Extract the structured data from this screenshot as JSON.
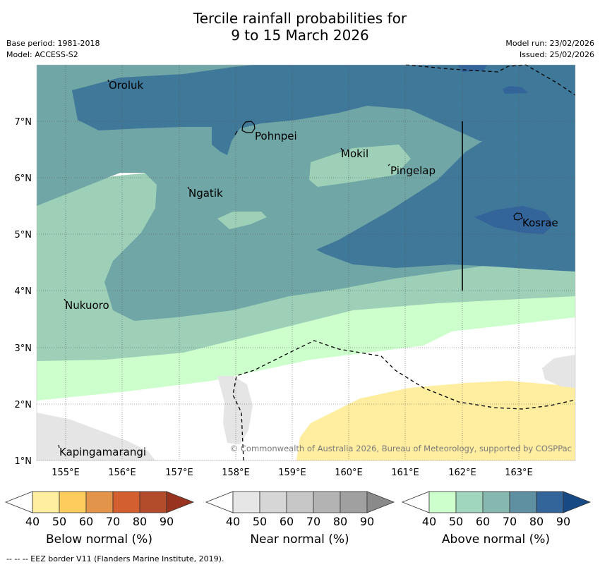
{
  "title": {
    "line1": "Tercile rainfall probabilities for",
    "line2": "9 to 15 March 2026"
  },
  "meta": {
    "base_period": "Base period: 1981-2018",
    "model": "Model: ACCESS-S2",
    "model_run": "Model run: 23/02/2026",
    "issued": "Issued: 25/02/2026"
  },
  "map": {
    "lat_labels": [
      "1°N",
      "2°N",
      "3°N",
      "4°N",
      "5°N",
      "6°N",
      "7°N"
    ],
    "lon_labels": [
      "155°E",
      "156°E",
      "157°E",
      "158°E",
      "159°E",
      "160°E",
      "161°E",
      "162°E",
      "163°E"
    ],
    "places": [
      {
        "name": "Oroluk"
      },
      {
        "name": "Pohnpei"
      },
      {
        "name": "Mokil"
      },
      {
        "name": "Pingelap"
      },
      {
        "name": "Ngatik"
      },
      {
        "name": "Kosrae"
      },
      {
        "name": "Nukuoro"
      },
      {
        "name": "Kapingamarangi"
      }
    ],
    "copyright": "© Commonwealth of Australia 2026, Bureau of Meteorology, supported by COSPPac"
  },
  "legend": {
    "ticks": [
      "40",
      "50",
      "60",
      "70",
      "80",
      "90"
    ],
    "below": {
      "label": "Below normal (%)",
      "colors": [
        "#ffffff",
        "#ffeda0",
        "#fecc5c",
        "#e1944a",
        "#d35f30",
        "#b24c2a",
        "#983320"
      ]
    },
    "near": {
      "label": "Near normal (%)",
      "colors": [
        "#ffffff",
        "#e6e6e6",
        "#d6d6d6",
        "#c7c7c7",
        "#b3b3b3",
        "#a0a0a0",
        "#8a8a8a"
      ]
    },
    "above": {
      "label": "Above normal (%)",
      "colors": [
        "#ffffff",
        "#ccffcc",
        "#a1d6be",
        "#86b8b0",
        "#5e90a2",
        "#33649a",
        "#174a85"
      ]
    }
  },
  "footer": {
    "eez": "--  --  -- EEZ border V11 (Flanders Marine Institute, 2019)."
  }
}
